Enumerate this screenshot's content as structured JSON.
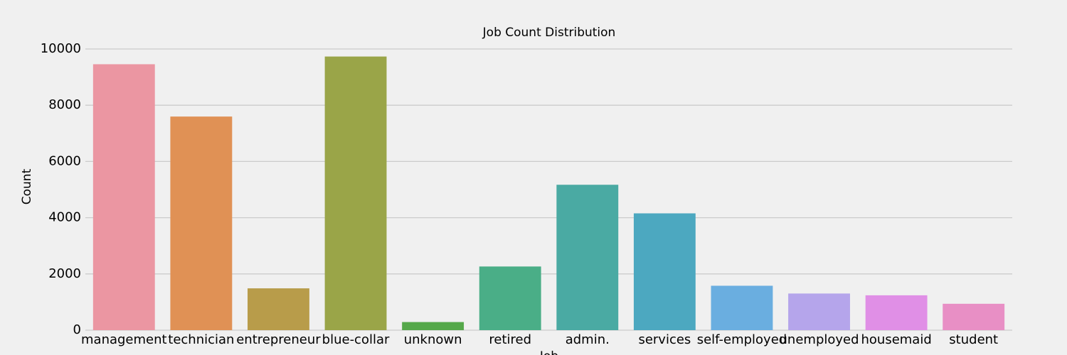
{
  "chart_data": {
    "type": "bar",
    "title": "Job Count Distribution",
    "x_label": "Job",
    "y_label": "Count",
    "categories": [
      "management",
      "technician",
      "entrepreneur",
      "blue-collar",
      "unknown",
      "retired",
      "admin.",
      "services",
      "self-employed",
      "unemployed",
      "housemaid",
      "student"
    ],
    "values": [
      9458,
      7597,
      1487,
      9732,
      288,
      2264,
      5171,
      4154,
      1579,
      1303,
      1240,
      938
    ],
    "colors": [
      "#eb96a2",
      "#e09155",
      "#b89c4a",
      "#9aa548",
      "#55a84a",
      "#4aae87",
      "#4aaaa3",
      "#4ca8c0",
      "#6aaee0",
      "#b5a5eb",
      "#e08fe6",
      "#e88fc5"
    ],
    "ylim": [
      0,
      10000
    ],
    "yticks": [
      0,
      2000,
      4000,
      6000,
      8000,
      10000
    ],
    "grid": true
  }
}
